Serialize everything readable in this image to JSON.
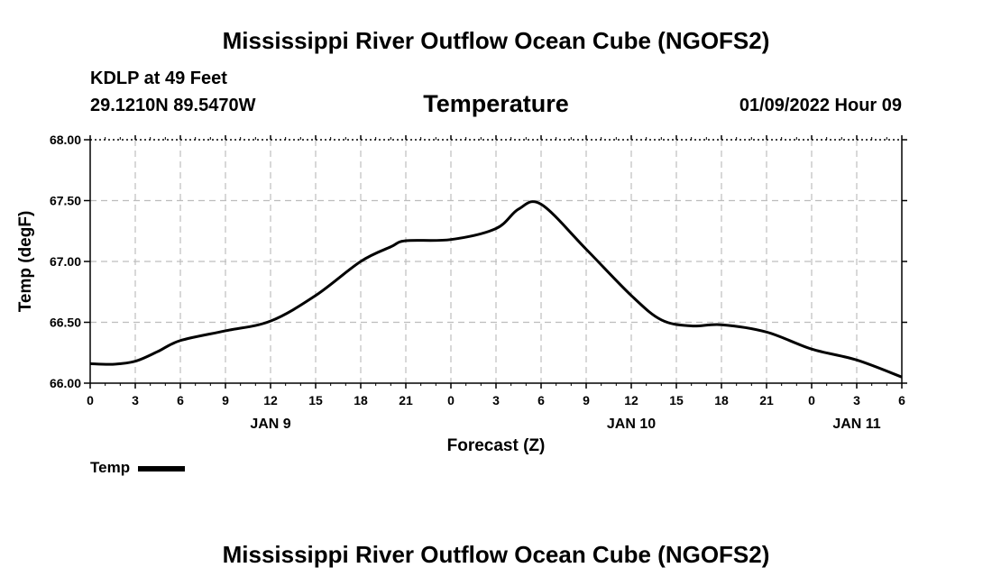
{
  "chart_data": {
    "type": "line",
    "title": "Mississippi River Outflow Ocean Cube (NGOFS2)",
    "station": "KDLP at 49 Feet",
    "coords": "29.1210N  89.5470W",
    "subtitle": "Temperature",
    "date": "01/09/2022 Hour 09",
    "xlabel": "Forecast (Z)",
    "ylabel": "Temp (degF)",
    "ylim": [
      66.0,
      68.0
    ],
    "xlim": [
      0,
      54
    ],
    "yticks": [
      "66.00",
      "66.50",
      "67.00",
      "67.50",
      "68.00"
    ],
    "xticks": [
      "0",
      "3",
      "6",
      "9",
      "12",
      "15",
      "18",
      "21",
      "0",
      "3",
      "6",
      "9",
      "12",
      "15",
      "18",
      "21",
      "0",
      "3",
      "6"
    ],
    "day_labels": [
      {
        "label": "JAN 9",
        "x": 12
      },
      {
        "label": "JAN 10",
        "x": 36
      },
      {
        "label": "JAN 11",
        "x": 51
      }
    ],
    "grid": true,
    "legend": {
      "label": "Temp",
      "position": "bottom-left"
    },
    "series": [
      {
        "name": "Temp",
        "x": [
          0,
          1.5,
          3,
          4.5,
          6,
          9,
          12,
          15,
          18,
          20,
          21,
          24,
          27,
          28.5,
          30,
          33,
          36,
          38,
          40,
          42,
          45,
          48,
          51,
          54
        ],
        "values": [
          66.16,
          66.155,
          66.18,
          66.26,
          66.35,
          66.43,
          66.51,
          66.72,
          67.0,
          67.12,
          67.17,
          67.18,
          67.27,
          67.43,
          67.47,
          67.1,
          66.72,
          66.52,
          66.47,
          66.48,
          66.42,
          66.28,
          66.19,
          66.05
        ]
      }
    ],
    "bottom_title": "Mississippi River Outflow Ocean Cube (NGOFS2)"
  }
}
